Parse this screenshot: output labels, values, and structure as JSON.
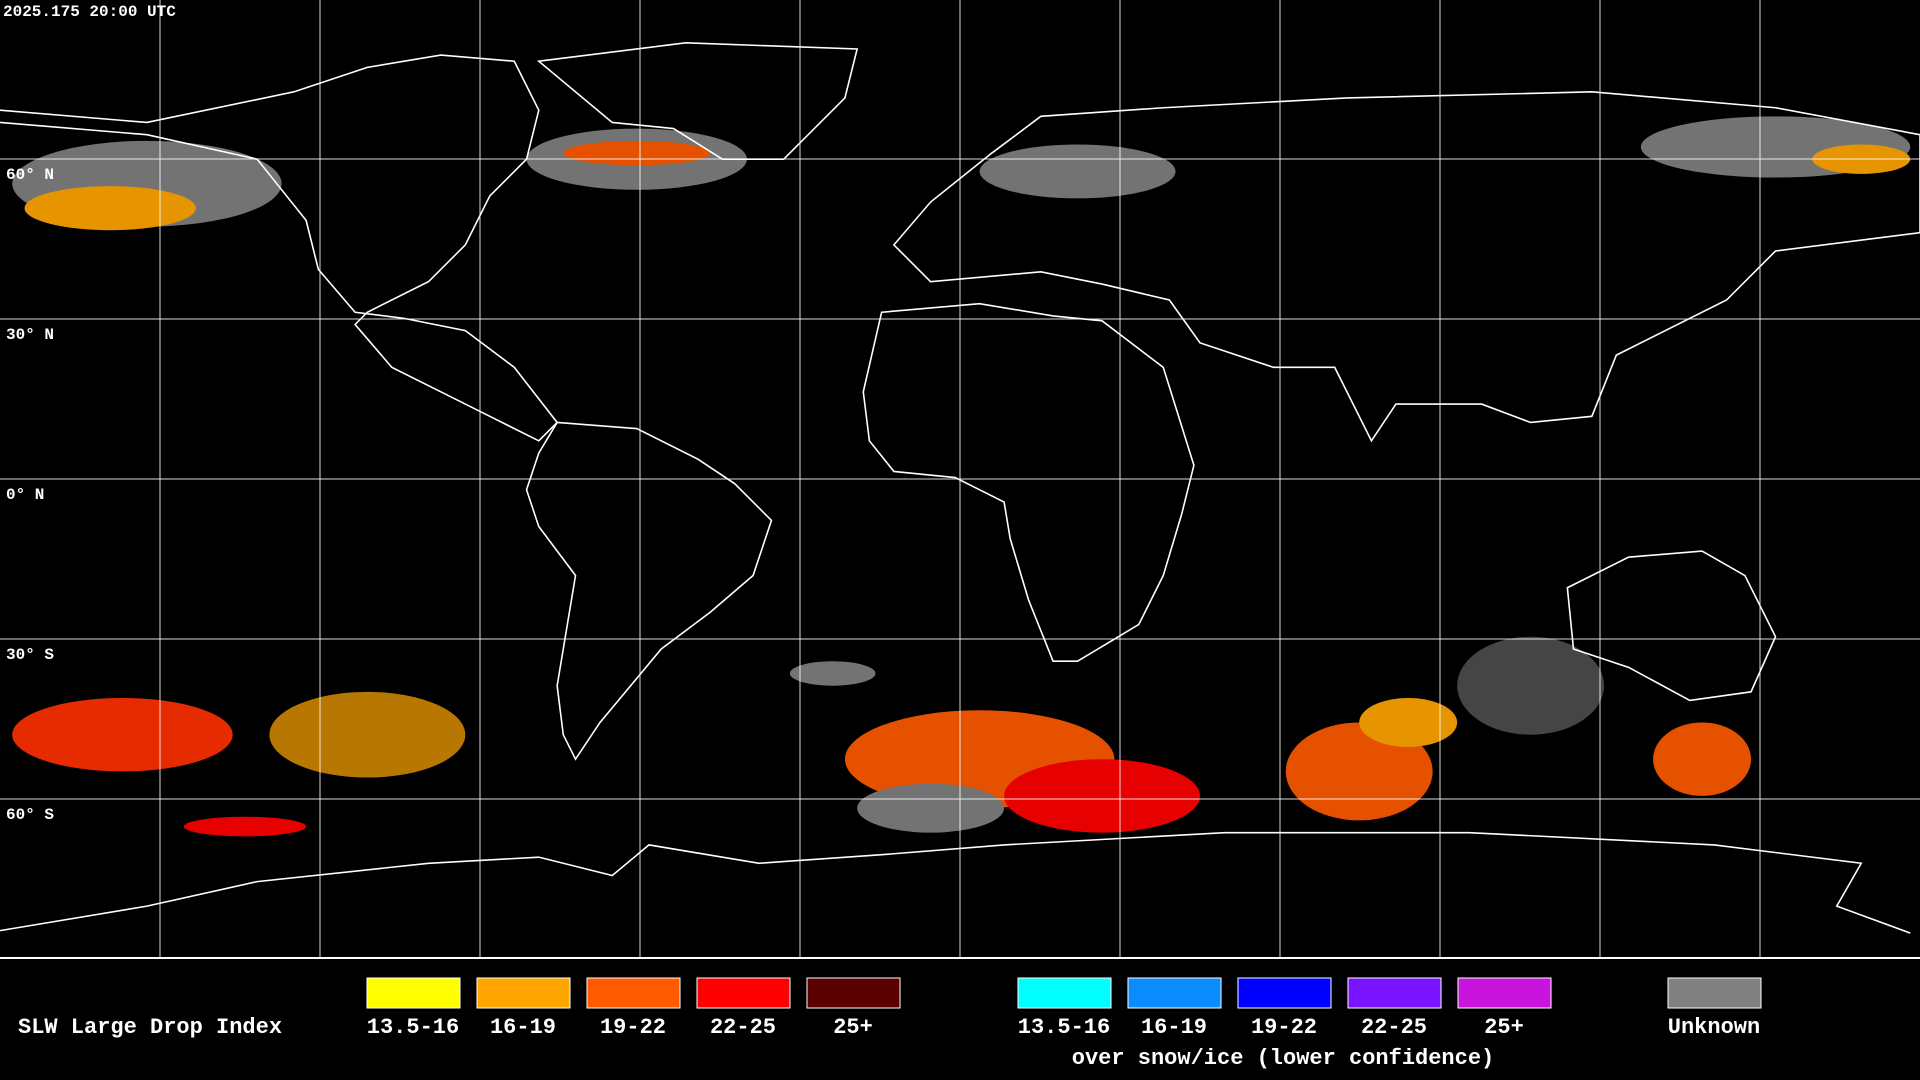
{
  "header": {
    "timestamp": "2025.175 20:00 UTC"
  },
  "map": {
    "latitude_labels": [
      "60° N",
      "30° N",
      "0° N",
      "30° S",
      "60° S"
    ]
  },
  "legend": {
    "title": "SLW Large Drop Index",
    "categories": [
      {
        "label": "13.5-16",
        "color": "#ffff00"
      },
      {
        "label": "16-19",
        "color": "#ffa500"
      },
      {
        "label": "19-22",
        "color": "#ff5a00"
      },
      {
        "label": "22-25",
        "color": "#ff0000"
      },
      {
        "label": "25+",
        "color": "#5a0000"
      }
    ],
    "snow_ice_categories": [
      {
        "label": "13.5-16",
        "color": "#00ffff"
      },
      {
        "label": "16-19",
        "color": "#0a8cff"
      },
      {
        "label": "19-22",
        "color": "#0000ff"
      },
      {
        "label": "22-25",
        "color": "#7814ff"
      },
      {
        "label": "25+",
        "color": "#c814dc"
      }
    ],
    "snow_ice_note": "over snow/ice (lower confidence)",
    "unknown": {
      "label": "Unknown",
      "color": "#808080"
    }
  }
}
